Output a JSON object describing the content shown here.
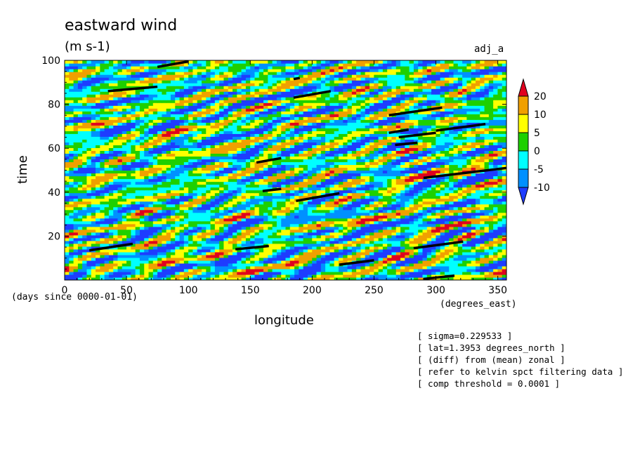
{
  "chart_data": {
    "type": "heatmap",
    "title": "eastward wind",
    "units_label": "(m s-1)",
    "tag": "adj_a",
    "xlabel": "longitude",
    "ylabel": "time",
    "x_units": "(degrees_east)",
    "time_units": "(days since 0000-01-01)",
    "xlim": [
      0,
      357
    ],
    "ylim": [
      0,
      100
    ],
    "x_ticks": [
      "0",
      "50",
      "100",
      "150",
      "200",
      "250",
      "300",
      "350"
    ],
    "x_tick_values": [
      0,
      50,
      100,
      150,
      200,
      250,
      300,
      350
    ],
    "y_ticks": [
      "20",
      "40",
      "60",
      "80",
      "100"
    ],
    "y_tick_values": [
      20,
      40,
      60,
      80,
      100
    ],
    "colorbar": {
      "labels": [
        "20",
        "10",
        "5",
        "0",
        "-5",
        "-10"
      ],
      "bands": [
        {
          "min": 20,
          "color": "#e0001e"
        },
        {
          "min": 10,
          "max": 20,
          "color": "#f0a000"
        },
        {
          "min": 5,
          "max": 10,
          "color": "#ffff00"
        },
        {
          "min": 0,
          "max": 5,
          "color": "#1ed000"
        },
        {
          "min": -5,
          "max": 0,
          "color": "#00ffff"
        },
        {
          "min": -10,
          "max": -5,
          "color": "#0090ff"
        },
        {
          "max": -10,
          "color": "#1e3cff"
        }
      ]
    },
    "overlay_segments": [
      {
        "x": [
          35,
          75
        ],
        "y": [
          86,
          88
        ]
      },
      {
        "x": [
          75,
          100
        ],
        "y": [
          97,
          99.5
        ]
      },
      {
        "x": [
          185,
          215
        ],
        "y": [
          83,
          86
        ]
      },
      {
        "x": [
          185,
          190
        ],
        "y": [
          91.5,
          92
        ]
      },
      {
        "x": [
          262,
          305
        ],
        "y": [
          75,
          78.5
        ]
      },
      {
        "x": [
          262,
          278
        ],
        "y": [
          67,
          68.5
        ]
      },
      {
        "x": [
          270,
          300
        ],
        "y": [
          65,
          67
        ]
      },
      {
        "x": [
          300,
          340
        ],
        "y": [
          68,
          71
        ]
      },
      {
        "x": [
          267,
          285
        ],
        "y": [
          61.5,
          62.5
        ]
      },
      {
        "x": [
          155,
          175
        ],
        "y": [
          53.5,
          55.5
        ]
      },
      {
        "x": [
          290,
          357
        ],
        "y": [
          46.5,
          51
        ]
      },
      {
        "x": [
          160,
          175
        ],
        "y": [
          40.5,
          41.5
        ]
      },
      {
        "x": [
          187,
          222
        ],
        "y": [
          36,
          39.5
        ]
      },
      {
        "x": [
          20,
          55
        ],
        "y": [
          13.5,
          16.5
        ]
      },
      {
        "x": [
          138,
          165
        ],
        "y": [
          14,
          15.5
        ]
      },
      {
        "x": [
          282,
          322
        ],
        "y": [
          14.5,
          17.5
        ]
      },
      {
        "x": [
          222,
          250
        ],
        "y": [
          7,
          9
        ]
      },
      {
        "x": [
          290,
          315
        ],
        "y": [
          0.5,
          2
        ]
      }
    ]
  },
  "notes": [
    "[ sigma=0.229533 ]",
    "[ lat=1.3953 degrees_north ]",
    "[ (diff) from (mean) zonal ]",
    "[ refer to kelvin spct filtering data ]",
    "[ comp threshold = 0.0001 ]"
  ]
}
